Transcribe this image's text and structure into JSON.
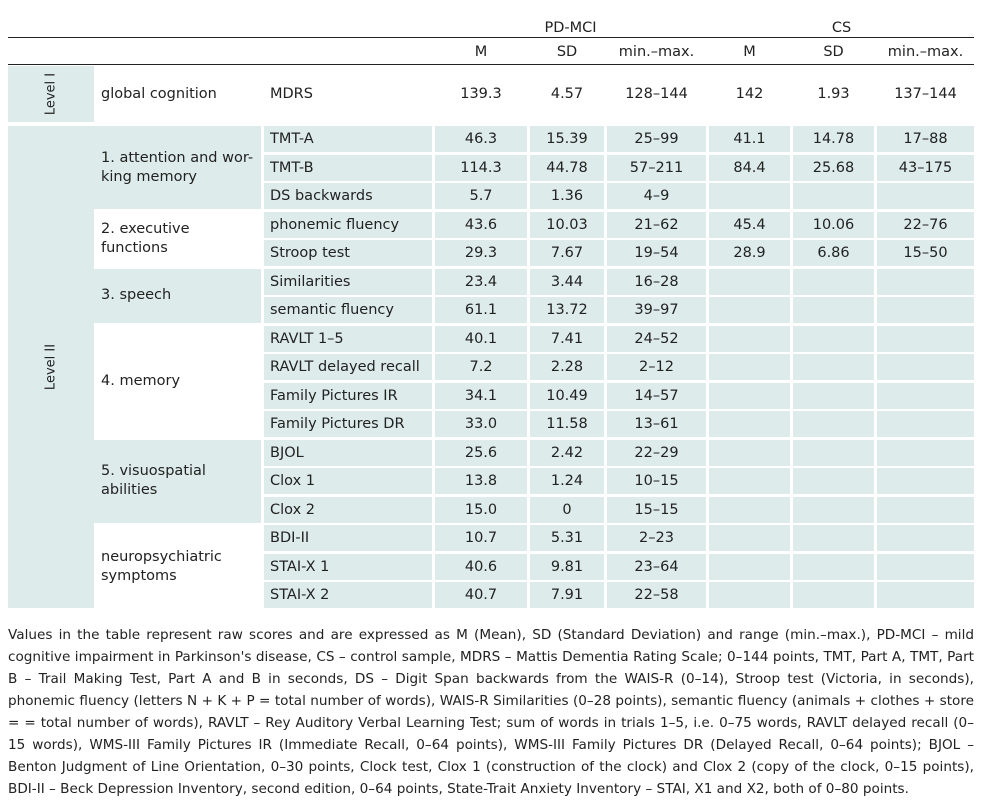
{
  "table": {
    "groups": [
      "PD-MCI",
      "CS"
    ],
    "columns": [
      "M",
      "SD",
      "min.–max.",
      "M",
      "SD",
      "min.–max."
    ],
    "level1": {
      "label": "Level I",
      "domain": "global cognition",
      "rows": [
        {
          "test": "MDRS",
          "values": [
            "139.3",
            "4.57",
            "128–144",
            "142",
            "1.93",
            "137–144"
          ]
        }
      ]
    },
    "level2": {
      "label": "Level II",
      "domains": [
        {
          "name_lines": [
            "1. attention and wor-",
            "king memory"
          ],
          "rows": [
            {
              "test": "TMT-A",
              "values": [
                "46.3",
                "15.39",
                "25–99",
                "41.1",
                "14.78",
                "17–88"
              ]
            },
            {
              "test": "TMT-B",
              "values": [
                "114.3",
                "44.78",
                "57–211",
                "84.4",
                "25.68",
                "43–175"
              ]
            },
            {
              "test": "DS backwards",
              "values": [
                "5.7",
                "1.36",
                "4–9",
                "",
                "",
                ""
              ]
            }
          ]
        },
        {
          "name_lines": [
            "2. executive",
            "functions"
          ],
          "rows": [
            {
              "test": "phonemic fluency",
              "values": [
                "43.6",
                "10.03",
                "21–62",
                "45.4",
                "10.06",
                "22–76"
              ]
            },
            {
              "test": "Stroop test",
              "values": [
                "29.3",
                "7.67",
                "19–54",
                "28.9",
                "6.86",
                "15–50"
              ]
            }
          ]
        },
        {
          "name_lines": [
            "3. speech"
          ],
          "rows": [
            {
              "test": "Similarities",
              "values": [
                "23.4",
                "3.44",
                "16–28",
                "",
                "",
                ""
              ]
            },
            {
              "test": "semantic fluency",
              "values": [
                "61.1",
                "13.72",
                "39–97",
                "",
                "",
                ""
              ]
            }
          ]
        },
        {
          "name_lines": [
            "4. memory"
          ],
          "rows": [
            {
              "test": "RAVLT 1–5",
              "values": [
                "40.1",
                "7.41",
                "24–52",
                "",
                "",
                ""
              ]
            },
            {
              "test": "RAVLT delayed recall",
              "values": [
                "7.2",
                "2.28",
                "2–12",
                "",
                "",
                ""
              ]
            },
            {
              "test": "Family Pictures IR",
              "values": [
                "34.1",
                "10.49",
                "14–57",
                "",
                "",
                ""
              ]
            },
            {
              "test": "Family Pictures DR",
              "values": [
                "33.0",
                "11.58",
                "13–61",
                "",
                "",
                ""
              ]
            }
          ]
        },
        {
          "name_lines": [
            "5. visuospatial",
            "abilities"
          ],
          "rows": [
            {
              "test": "BJOL",
              "values": [
                "25.6",
                "2.42",
                "22–29",
                "",
                "",
                ""
              ]
            },
            {
              "test": "Clox 1",
              "values": [
                "13.8",
                "1.24",
                "10–15",
                "",
                "",
                ""
              ]
            },
            {
              "test": "Clox 2",
              "values": [
                "15.0",
                "0",
                "15–15",
                "",
                "",
                ""
              ]
            }
          ]
        },
        {
          "name_lines": [
            "neuropsychiatric",
            "symptoms"
          ],
          "rows": [
            {
              "test": "BDI-II",
              "values": [
                "10.7",
                "5.31",
                "2–23",
                "",
                "",
                ""
              ]
            },
            {
              "test": "STAI-X 1",
              "values": [
                "40.6",
                "9.81",
                "23–64",
                "",
                "",
                ""
              ]
            },
            {
              "test": "STAI-X 2",
              "values": [
                "40.7",
                "7.91",
                "22–58",
                "",
                "",
                ""
              ]
            }
          ]
        }
      ]
    }
  },
  "footnote": "Values in the table represent raw scores and are expressed as M (Mean), SD (Standard Deviation) and range (min.–max.), PD-MCI – mild cognitive impairment in Parkinson's disease, CS – control sample, MDRS – Mattis Dementia Rating Scale; 0–144 points, TMT, Part A, TMT, Part B – Trail Making Test, Part A and B in seconds, DS – Digit Span backwards from the WAIS-R (0–14), Stroop test (Victoria, in seconds), phonemic fluency (letters N + K + P = total number of words), WAIS-R Similarities (0–28 points), semantic fluency (animals + clothes + store = = total number of words), RAVLT – Rey Auditory Verbal Learning Test; sum of words in trials 1–5, i.e. 0–75 words, RAVLT delayed recall (0–15 words), WMS-III Family Pictures IR (Immediate Recall, 0–64 points), WMS-III Family Pictures DR (Delayed Recall, 0–64 points); BJOL – Benton Judgment of Line Orientation, 0–30 points, Clock test, Clox 1 (construction of the clock) and Clox 2 (copy of the clock, 0–15 points), BDI-II – Beck Depression Inventory, second edition, 0–64 points, State-Trait Anxiety Inventory – STAI, X1 and X2, both of 0–80 points."
}
